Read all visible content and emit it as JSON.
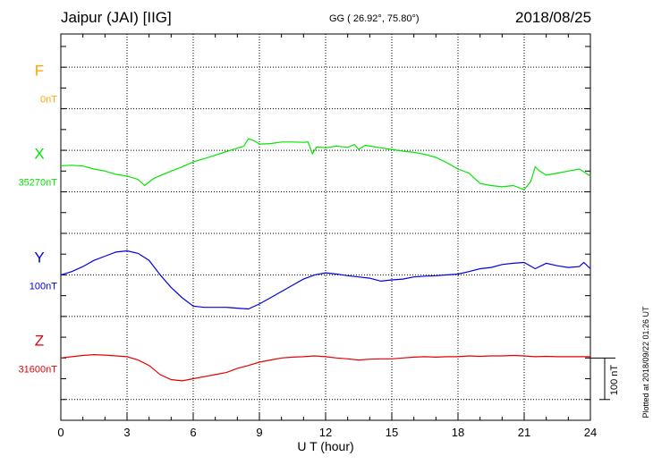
{
  "header": {
    "station": "Jaipur (JAI)  [IIG]",
    "coords": "GG ( 26.92°,  75.80°)",
    "date": "2018/08/25"
  },
  "side_note": "Plotted at 2018/09/22 01:26 UT",
  "scale_bar": {
    "label": "100 nT",
    "value": 100
  },
  "chart_data": {
    "type": "line",
    "xlabel": "U T (hour)",
    "xlim": [
      0,
      24
    ],
    "xticks": [
      0,
      3,
      6,
      9,
      12,
      15,
      18,
      21,
      24
    ],
    "ylim_nT": [
      -150,
      780
    ],
    "grid": true,
    "series": [
      {
        "name": "F",
        "baseline_label": "0nT",
        "color": "#ffa500",
        "offset_nT": 650,
        "points": []
      },
      {
        "name": "X",
        "baseline_label": "35270nT",
        "color": "#00e600",
        "offset_nT": 450,
        "points": [
          [
            0,
            13
          ],
          [
            0.5,
            14
          ],
          [
            1,
            12
          ],
          [
            1.5,
            5
          ],
          [
            2,
            0
          ],
          [
            2.5,
            -8
          ],
          [
            3,
            -12
          ],
          [
            3.5,
            -20
          ],
          [
            3.8,
            -35
          ],
          [
            4.2,
            -18
          ],
          [
            5,
            0
          ],
          [
            5.5,
            10
          ],
          [
            6,
            22
          ],
          [
            6.5,
            30
          ],
          [
            7,
            38
          ],
          [
            7.5,
            47
          ],
          [
            8,
            55
          ],
          [
            8.3,
            60
          ],
          [
            8.5,
            78
          ],
          [
            8.8,
            72
          ],
          [
            9,
            65
          ],
          [
            9.5,
            66
          ],
          [
            10,
            70
          ],
          [
            10.5,
            70
          ],
          [
            11,
            69
          ],
          [
            11.2,
            70
          ],
          [
            11.4,
            42
          ],
          [
            11.6,
            58
          ],
          [
            12,
            56
          ],
          [
            12.5,
            60
          ],
          [
            13,
            57
          ],
          [
            13.3,
            64
          ],
          [
            13.5,
            52
          ],
          [
            13.8,
            62
          ],
          [
            14,
            60
          ],
          [
            14.5,
            56
          ],
          [
            15,
            52
          ],
          [
            15.5,
            48
          ],
          [
            16,
            45
          ],
          [
            16.5,
            40
          ],
          [
            17,
            33
          ],
          [
            17.5,
            20
          ],
          [
            18,
            5
          ],
          [
            18.5,
            -5
          ],
          [
            19,
            -30
          ],
          [
            19.5,
            -35
          ],
          [
            20,
            -38
          ],
          [
            20.5,
            -35
          ],
          [
            21,
            -45
          ],
          [
            21.3,
            -25
          ],
          [
            21.5,
            10
          ],
          [
            21.7,
            0
          ],
          [
            22,
            -10
          ],
          [
            22.5,
            -5
          ],
          [
            23,
            0
          ],
          [
            23.5,
            5
          ],
          [
            24,
            -12
          ]
        ]
      },
      {
        "name": "Y",
        "baseline_label": "100nT",
        "color": "#0000e6",
        "offset_nT": 200,
        "points": [
          [
            0,
            0
          ],
          [
            0.5,
            8
          ],
          [
            1,
            20
          ],
          [
            1.5,
            35
          ],
          [
            2,
            45
          ],
          [
            2.5,
            55
          ],
          [
            3,
            58
          ],
          [
            3.5,
            52
          ],
          [
            4,
            35
          ],
          [
            4.5,
            0
          ],
          [
            5,
            -30
          ],
          [
            5.5,
            -55
          ],
          [
            6,
            -75
          ],
          [
            6.5,
            -78
          ],
          [
            7,
            -78
          ],
          [
            7.5,
            -78
          ],
          [
            8,
            -80
          ],
          [
            8.5,
            -82
          ],
          [
            9,
            -70
          ],
          [
            9.5,
            -55
          ],
          [
            10,
            -40
          ],
          [
            10.5,
            -25
          ],
          [
            11,
            -10
          ],
          [
            11.5,
            0
          ],
          [
            12,
            5
          ],
          [
            12.5,
            2
          ],
          [
            13,
            -2
          ],
          [
            13.5,
            -5
          ],
          [
            14,
            -8
          ],
          [
            14.5,
            -15
          ],
          [
            15,
            -12
          ],
          [
            15.5,
            -10
          ],
          [
            16,
            -5
          ],
          [
            16.5,
            -3
          ],
          [
            17,
            -2
          ],
          [
            17.5,
            0
          ],
          [
            18,
            2
          ],
          [
            18.5,
            8
          ],
          [
            19,
            15
          ],
          [
            19.5,
            18
          ],
          [
            20,
            25
          ],
          [
            20.5,
            28
          ],
          [
            21,
            30
          ],
          [
            21.5,
            15
          ],
          [
            22,
            28
          ],
          [
            22.5,
            22
          ],
          [
            23,
            18
          ],
          [
            23.5,
            20
          ],
          [
            23.7,
            30
          ],
          [
            24,
            15
          ]
        ]
      },
      {
        "name": "Z",
        "baseline_label": "31600nT",
        "color": "#e60000",
        "offset_nT": 0,
        "points": [
          [
            0,
            0
          ],
          [
            0.5,
            3
          ],
          [
            1,
            6
          ],
          [
            1.5,
            8
          ],
          [
            2,
            7
          ],
          [
            2.5,
            5
          ],
          [
            3,
            3
          ],
          [
            3.5,
            -5
          ],
          [
            4,
            -18
          ],
          [
            4.5,
            -40
          ],
          [
            5,
            -52
          ],
          [
            5.5,
            -55
          ],
          [
            6,
            -50
          ],
          [
            6.5,
            -45
          ],
          [
            7,
            -40
          ],
          [
            7.5,
            -35
          ],
          [
            8,
            -25
          ],
          [
            8.5,
            -18
          ],
          [
            9,
            -10
          ],
          [
            9.5,
            -5
          ],
          [
            10,
            0
          ],
          [
            10.5,
            2
          ],
          [
            11,
            3
          ],
          [
            11.5,
            5
          ],
          [
            12,
            3
          ],
          [
            12.5,
            0
          ],
          [
            13,
            -2
          ],
          [
            13.5,
            -5
          ],
          [
            14,
            -3
          ],
          [
            14.5,
            -2
          ],
          [
            15,
            -2
          ],
          [
            15.5,
            0
          ],
          [
            16,
            2
          ],
          [
            16.5,
            3
          ],
          [
            17,
            2
          ],
          [
            17.5,
            3
          ],
          [
            18,
            3
          ],
          [
            18.5,
            5
          ],
          [
            19,
            4
          ],
          [
            19.5,
            5
          ],
          [
            20,
            5
          ],
          [
            20.5,
            6
          ],
          [
            21,
            5
          ],
          [
            21.5,
            3
          ],
          [
            22,
            4
          ],
          [
            22.5,
            3
          ],
          [
            23,
            3
          ],
          [
            23.5,
            3
          ],
          [
            24,
            3
          ]
        ]
      }
    ]
  }
}
